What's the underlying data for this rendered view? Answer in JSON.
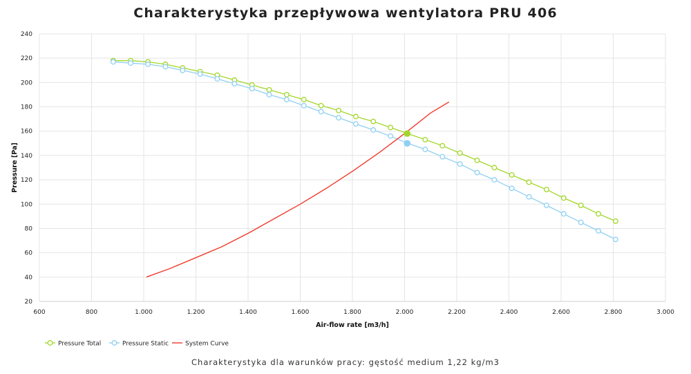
{
  "chart_data": {
    "type": "line",
    "title": "Charakterystyka przepływowa wentylatora PRU 406",
    "subtitle": "Charakterystyka dla warunków pracy: gęstość medium 1,22 kg/m3",
    "xlabel": "Air-flow rate [m3/h]",
    "ylabel": "Pressure [Pa]",
    "xlim": [
      600,
      3000
    ],
    "ylim": [
      20,
      240
    ],
    "x_ticks": [
      600,
      800,
      1000,
      1200,
      1400,
      1600,
      1800,
      2000,
      2200,
      2400,
      2600,
      2800,
      3000
    ],
    "x_tick_labels": [
      "600",
      "800",
      "1.000",
      "1.200",
      "1.400",
      "1.600",
      "1.800",
      "2.000",
      "2.200",
      "2.400",
      "2.600",
      "2.800",
      "3.000"
    ],
    "y_ticks": [
      20,
      40,
      60,
      80,
      100,
      120,
      140,
      160,
      180,
      200,
      220,
      240
    ],
    "y_tick_labels": [
      "20",
      "40",
      "60",
      "80",
      "100",
      "120",
      "140",
      "160",
      "180",
      "200",
      "220",
      "240"
    ],
    "grid": true,
    "legend_position": "bottom-left",
    "series": [
      {
        "name": "Pressure Total",
        "color": "#a3d62a",
        "marker": "circle-open",
        "x": [
          883,
          950,
          1016,
          1083,
          1149,
          1216,
          1282,
          1348,
          1415,
          1481,
          1548,
          1614,
          1680,
          1747,
          1813,
          1880,
          1946,
          2012,
          2079,
          2145,
          2212,
          2278,
          2344,
          2411,
          2477,
          2544,
          2610,
          2676,
          2743,
          2809
        ],
        "y": [
          218,
          218,
          217,
          215,
          212,
          209,
          206,
          202,
          198,
          194,
          190,
          186,
          181,
          177,
          172,
          168,
          163,
          158,
          153,
          148,
          142,
          136,
          130,
          124,
          118,
          112,
          105,
          99,
          92,
          86
        ]
      },
      {
        "name": "Pressure Static",
        "color": "#8fd0f2",
        "marker": "circle-open",
        "x": [
          883,
          950,
          1016,
          1083,
          1149,
          1216,
          1282,
          1348,
          1415,
          1481,
          1548,
          1614,
          1680,
          1747,
          1813,
          1880,
          1946,
          2012,
          2079,
          2145,
          2212,
          2278,
          2344,
          2411,
          2477,
          2544,
          2610,
          2676,
          2743,
          2809
        ],
        "y": [
          217,
          216,
          215,
          213,
          210,
          207,
          203,
          199,
          195,
          190,
          186,
          181,
          176,
          171,
          166,
          161,
          156,
          150,
          145,
          139,
          133,
          126,
          120,
          113,
          106,
          99,
          92,
          85,
          78,
          71
        ]
      },
      {
        "name": "System Curve",
        "color": "#f03a2c",
        "marker": "none",
        "x": [
          1010,
          1100,
          1200,
          1300,
          1400,
          1500,
          1600,
          1700,
          1800,
          1900,
          2000,
          2100,
          2170
        ],
        "y": [
          40,
          47,
          56,
          65,
          76,
          88,
          100,
          113,
          127,
          142,
          158,
          175,
          184
        ]
      }
    ],
    "operating_points": [
      {
        "series": "Pressure Total",
        "x": 2010,
        "y": 158,
        "color": "#a3d62a"
      },
      {
        "series": "Pressure Static",
        "x": 2010,
        "y": 150,
        "color": "#8fd0f2"
      }
    ]
  }
}
